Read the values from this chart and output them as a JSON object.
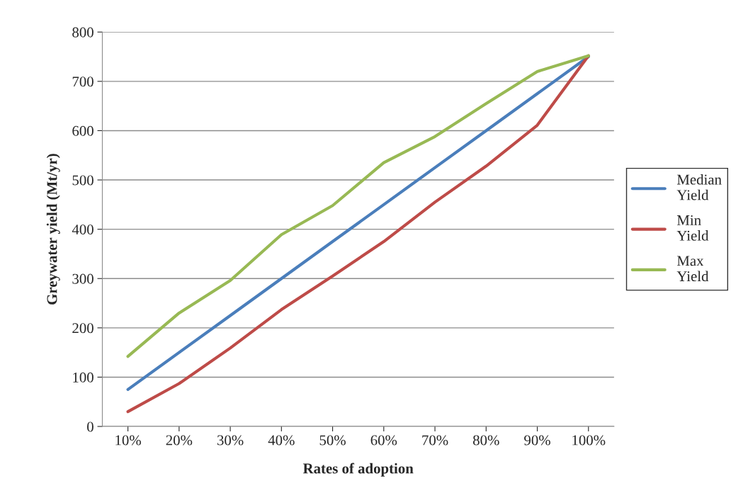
{
  "chart_data": {
    "type": "line",
    "xlabel": "Rates of adoption",
    "ylabel": "Greywater yield (Mt/yr)",
    "categories": [
      "10%",
      "20%",
      "30%",
      "40%",
      "50%",
      "60%",
      "70%",
      "80%",
      "90%",
      "100%"
    ],
    "series": [
      {
        "name": "Median Yield",
        "color": "#4a7ebb",
        "values": [
          75,
          150,
          225,
          300,
          375,
          450,
          525,
          600,
          675,
          750
        ]
      },
      {
        "name": "Min Yield",
        "color": "#be4b48",
        "values": [
          30,
          87,
          159,
          237,
          305,
          375,
          455,
          528,
          611,
          752
        ]
      },
      {
        "name": "Max Yield",
        "color": "#98b954",
        "values": [
          142,
          230,
          296,
          389,
          448,
          535,
          588,
          655,
          720,
          752
        ]
      }
    ],
    "ylim": [
      0,
      800
    ],
    "yticks": [
      0,
      100,
      200,
      300,
      400,
      500,
      600,
      700,
      800
    ],
    "grid": "y",
    "legend": "right",
    "marker": "none",
    "line_style": "solid"
  }
}
